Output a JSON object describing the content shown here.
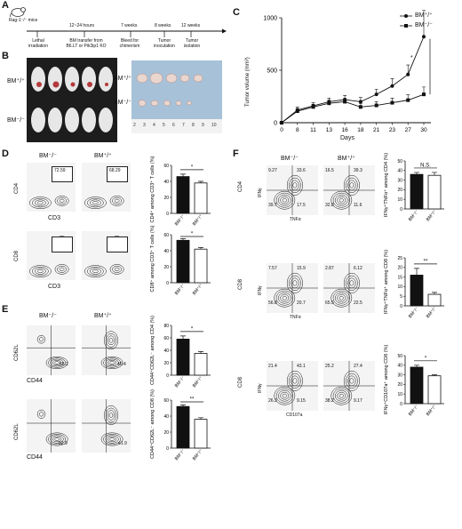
{
  "panels": {
    "a": "A",
    "b": "B",
    "c": "C",
    "d": "D",
    "e": "E",
    "f": "F"
  },
  "timeline": {
    "mouse": "Rag-1⁻/⁻ mice",
    "time_points": [
      "12~24 hours",
      "7 weeks",
      "8 weeks",
      "12 weeks"
    ],
    "events": [
      "Lethal irradiation",
      "BM transfer from B6.LT or Pik3ip1 KO",
      "Bleed for chimerism",
      "Tumor inoculation",
      "Tumor isolation"
    ]
  },
  "photo": {
    "group_pp": "BM⁺/⁺",
    "group_mm": "BM⁻/⁻",
    "ruler": [
      "2",
      "3",
      "4",
      "5",
      "6",
      "7",
      "8",
      "9",
      "10"
    ]
  },
  "tumor_chart": {
    "ylabel": "Tumor volume (mm³)",
    "xlabel": "Days",
    "significance": "*",
    "chart_data": {
      "type": "line",
      "x": [
        0,
        8,
        11,
        13,
        16,
        18,
        21,
        23,
        27,
        30
      ],
      "xticks": [
        "0",
        "8",
        "11",
        "13",
        "16",
        "18",
        "21",
        "23",
        "27",
        "30"
      ],
      "ylim": [
        0,
        1000
      ],
      "yticks": [
        0,
        500,
        1000
      ],
      "series": [
        {
          "name": "BM⁺/⁺",
          "values": [
            0,
            120,
            160,
            200,
            220,
            200,
            270,
            350,
            460,
            820
          ],
          "err": [
            0,
            30,
            30,
            35,
            40,
            40,
            50,
            70,
            90,
            250
          ],
          "marker": "circle"
        },
        {
          "name": "BM⁻/⁻",
          "values": [
            0,
            110,
            150,
            185,
            200,
            150,
            165,
            190,
            215,
            270
          ],
          "err": [
            0,
            25,
            25,
            30,
            30,
            30,
            35,
            45,
            50,
            70
          ],
          "marker": "square"
        }
      ]
    }
  },
  "d": {
    "col_labels": [
      "BM⁻/⁻",
      "BM⁺/⁺"
    ],
    "row1": {
      "y": "CD4",
      "x": "CD3",
      "gates": [
        "72.59",
        "68.29"
      ]
    },
    "row2": {
      "y": "CD8",
      "x": "CD3"
    },
    "bar1": {
      "ylabel": "CD4⁺ among CD3⁺ T cells (%)",
      "sig": "*",
      "chart_data": {
        "type": "bar",
        "categories": [
          "BM⁻/⁻",
          "BM⁺/⁺"
        ],
        "values": [
          46,
          38
        ],
        "err": [
          3,
          2
        ],
        "ylim": [
          0,
          60
        ],
        "yticks": [
          0,
          20,
          40,
          60
        ]
      }
    },
    "bar2": {
      "ylabel": "CD8⁺ among CD3⁺ T cells (%)",
      "sig": "*",
      "chart_data": {
        "type": "bar",
        "categories": [
          "BM⁻/⁻",
          "BM⁺/⁺"
        ],
        "values": [
          53,
          42
        ],
        "err": [
          2,
          2
        ],
        "ylim": [
          0,
          60
        ],
        "yticks": [
          0,
          20,
          40,
          60
        ]
      }
    }
  },
  "e": {
    "col_labels": [
      "BM⁻/⁻",
      "BM⁺/⁺"
    ],
    "row1": {
      "y": "CD62L",
      "x": "CD44",
      "gates": [
        "65.2",
        "40.4"
      ]
    },
    "row2": {
      "y": "CD62L",
      "x": "CD44",
      "gates": [
        "62.9",
        "41.9"
      ]
    },
    "bar1": {
      "ylabel": "CD44⁺CD62L⁻ among CD4 (%)",
      "sig": "*",
      "chart_data": {
        "type": "bar",
        "categories": [
          "BM⁻/⁻",
          "BM⁺/⁺"
        ],
        "values": [
          58,
          35
        ],
        "err": [
          5,
          3
        ],
        "ylim": [
          0,
          80
        ],
        "yticks": [
          0,
          20,
          40,
          60,
          80
        ]
      }
    },
    "bar2": {
      "ylabel": "CD44⁺CD62L⁻ among CD8 (%)",
      "sig": "**",
      "chart_data": {
        "type": "bar",
        "categories": [
          "BM⁻/⁻",
          "BM⁺/⁺"
        ],
        "values": [
          52,
          36
        ],
        "err": [
          2,
          2
        ],
        "ylim": [
          0,
          60
        ],
        "yticks": [
          0,
          20,
          40,
          60
        ]
      }
    }
  },
  "f": {
    "col_labels": [
      "BM⁻/⁻",
      "BM⁺/⁺"
    ],
    "row_labels": [
      "CD4",
      "CD8",
      "CD8"
    ],
    "rows": [
      {
        "y": "IFNγ",
        "x": "TNFα",
        "q_mm": [
          "9.27",
          "33.6",
          "39.7",
          "17.5"
        ],
        "q_pp": [
          "16.5",
          "39.3",
          "32.8",
          "11.6"
        ]
      },
      {
        "y": "IFNγ",
        "x": "TNFα",
        "q_mm": [
          "7.57",
          "15.9",
          "56.8",
          "20.7"
        ],
        "q_pp": [
          "2.87",
          "6.12",
          "65.5",
          "22.5"
        ]
      },
      {
        "y": "IFNγ",
        "x": "CD107a",
        "q_mm": [
          "21.4",
          "43.1",
          "26.3",
          "9.15"
        ],
        "q_pp": [
          "25.2",
          "27.4",
          "38.2",
          "9.17"
        ]
      }
    ],
    "bar1": {
      "ylabel": "IFNγ⁺TNFα⁺ among CD4 (%)",
      "sig": "N.S.",
      "chart_data": {
        "type": "bar",
        "categories": [
          "BM⁻/⁻",
          "BM⁺/⁺"
        ],
        "values": [
          36,
          35
        ],
        "err": [
          2,
          3
        ],
        "ylim": [
          0,
          50
        ],
        "yticks": [
          0,
          10,
          20,
          30,
          40,
          50
        ]
      }
    },
    "bar2": {
      "ylabel": "IFNγ⁺TNFα⁺ among CD8 (%)",
      "sig": "**",
      "chart_data": {
        "type": "bar",
        "categories": [
          "BM⁻/⁻",
          "BM⁺/⁺"
        ],
        "values": [
          16,
          6
        ],
        "err": [
          3.5,
          1
        ],
        "ylim": [
          0,
          25
        ],
        "yticks": [
          0,
          5,
          10,
          15,
          20,
          25
        ]
      }
    },
    "bar3": {
      "ylabel": "IFNγ⁺CD107a⁺ among CD8 (%)",
      "sig": "*",
      "chart_data": {
        "type": "bar",
        "categories": [
          "BM⁻/⁻",
          "BM⁺/⁺"
        ],
        "values": [
          38,
          29
        ],
        "err": [
          2,
          1
        ],
        "ylim": [
          0,
          50
        ],
        "yticks": [
          0,
          10,
          20,
          30,
          40,
          50
        ]
      }
    }
  }
}
